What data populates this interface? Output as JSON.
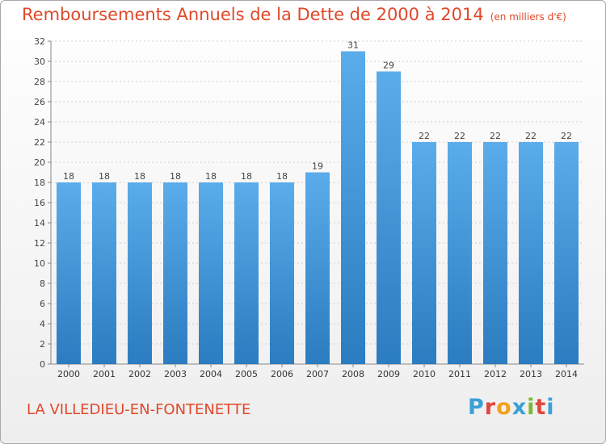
{
  "page": {
    "title": "Remboursements Annuels de la Dette de 2000 à 2014",
    "title_unit": "(en milliers d'€)",
    "commune": "LA VILLEDIEU-EN-FONTENETTE",
    "logo": {
      "letters": [
        "P",
        "r",
        "o",
        "x",
        "i",
        "t",
        "i"
      ],
      "colors": [
        "#3aa0d8",
        "#e2453c",
        "#f1a21a",
        "#3aa0d8",
        "#7cb82f",
        "#e2453c",
        "#3aa0d8"
      ]
    }
  },
  "chart_data": {
    "type": "bar",
    "title": "Remboursements Annuels de la Dette de 2000 à 2014",
    "categories": [
      "2000",
      "2001",
      "2002",
      "2003",
      "2004",
      "2005",
      "2006",
      "2007",
      "2008",
      "2009",
      "2010",
      "2011",
      "2012",
      "2013",
      "2014"
    ],
    "values": [
      18,
      18,
      18,
      18,
      18,
      18,
      18,
      19,
      31,
      29,
      22,
      22,
      22,
      22,
      22
    ],
    "ylim": [
      0,
      32
    ],
    "yticks": [
      0,
      2,
      4,
      6,
      8,
      10,
      12,
      14,
      16,
      18,
      20,
      22,
      24,
      26,
      28,
      30,
      32
    ],
    "grid": true,
    "bar_color_top": "#5aacea",
    "bar_color_bottom": "#2b7cc0"
  }
}
